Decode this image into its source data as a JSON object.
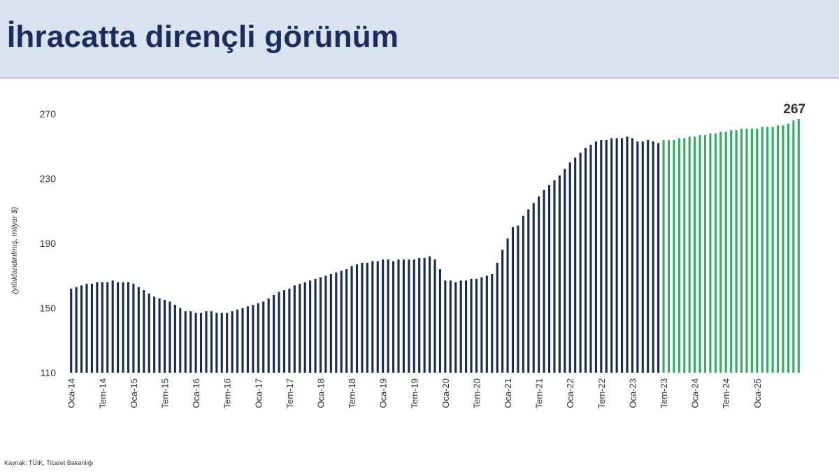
{
  "title": "İhracatta dirençli görünüm",
  "source": "Kaynak: TÜİK, Ticaret Bakanlığı",
  "colors": {
    "historical": "#1a2b50",
    "recent": "#2eae60",
    "header_bg": "#d9e3ef",
    "title": "#1a2d5c"
  },
  "chart_data": {
    "type": "bar",
    "title": "İhracatta dirençli görünüm",
    "ylabel": "(yıllıklandırılmış, milyar $)",
    "xlabel": "",
    "ylim": [
      110,
      270
    ],
    "yticks": [
      110,
      150,
      190,
      230,
      270
    ],
    "grid": false,
    "annotation": {
      "label": "267"
    },
    "x_tick_labels": [
      "Oca-14",
      "Tem-14",
      "Oca-15",
      "Tem-15",
      "Oca-16",
      "Tem-16",
      "Oca-17",
      "Tem-17",
      "Oca-18",
      "Tem-18",
      "Oca-19",
      "Tem-19",
      "Oca-20",
      "Tem-20",
      "Oca-21",
      "Tem-21",
      "Oca-22",
      "Tem-22",
      "Oca-23",
      "Tem-23",
      "Oca-24",
      "Tem-24",
      "Oca-25"
    ],
    "series": [
      {
        "values": [
          162,
          163,
          164,
          165,
          165,
          166,
          166,
          166,
          167,
          166,
          166,
          166,
          165,
          163,
          161,
          159,
          157,
          156,
          155,
          154,
          152,
          150,
          148,
          148,
          147,
          147,
          148,
          148,
          147,
          147,
          147,
          148,
          149,
          150,
          151,
          152,
          153,
          154,
          156,
          158,
          160,
          161,
          162,
          164,
          165,
          166,
          167,
          168,
          169,
          170,
          171,
          172,
          173,
          174,
          176,
          177,
          178,
          178,
          179,
          179,
          180,
          180,
          179,
          180,
          180,
          180,
          180,
          181,
          181,
          182,
          180,
          174,
          167,
          167,
          166,
          167,
          167,
          168,
          168,
          169,
          170,
          171,
          178,
          186,
          193,
          200,
          201,
          207,
          211,
          215,
          219,
          223,
          226,
          229,
          232,
          236,
          240,
          243,
          246,
          249,
          251,
          253,
          254,
          254,
          255,
          255,
          255,
          256,
          255,
          253,
          253,
          254,
          253,
          252
        ]
      },
      {
        "values": [
          254,
          254,
          254,
          255,
          255,
          256,
          256,
          257,
          257,
          258,
          258,
          259,
          259,
          260,
          260,
          261,
          261,
          261,
          261,
          262,
          262,
          262,
          263,
          263,
          264,
          266,
          267
        ]
      }
    ]
  }
}
